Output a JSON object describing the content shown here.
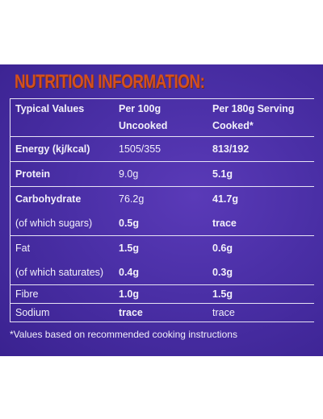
{
  "title": "NUTRITION INFORMATION:",
  "headers": {
    "col1": "Typical Values",
    "col2_line1": "Per 100g",
    "col2_line2": "Uncooked",
    "col3_line1": "Per 180g Serving",
    "col3_line2": "Cooked*"
  },
  "rows": [
    {
      "label": "Energy (kj/kcal)",
      "per100": "1505/355",
      "per180": "813/192"
    },
    {
      "label": "Protein",
      "per100": "9.0g",
      "per180": "5.1g"
    },
    {
      "label": "Carbohydrate",
      "per100": "76.2g",
      "per180": "41.7g"
    },
    {
      "label": "(of which sugars)",
      "per100": "0.5g",
      "per180": "trace"
    },
    {
      "label": "Fat",
      "per100": "1.5g",
      "per180": "0.6g"
    },
    {
      "label": "(of which saturates)",
      "per100": "0.4g",
      "per180": "0.3g"
    },
    {
      "label": "Fibre",
      "per100": "1.0g",
      "per180": "1.5g"
    },
    {
      "label": "Sodium",
      "per100": "trace",
      "per180": "trace"
    }
  ],
  "footnote": "*Values based on recommended cooking instructions",
  "colors": {
    "panel": "#4a2fa6",
    "title": "#d4501e",
    "text": "#f2f0fa"
  }
}
